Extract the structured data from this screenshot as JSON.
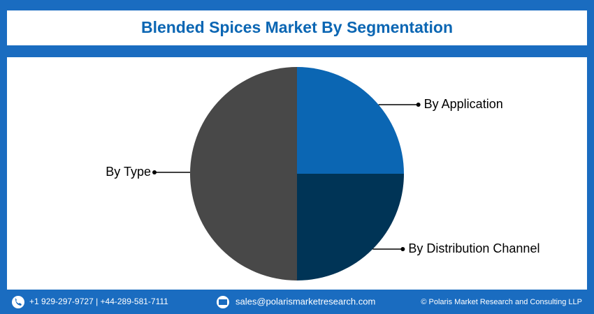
{
  "chart_data": {
    "type": "pie",
    "title": "Blended Spices Market By Segmentation",
    "categories": [
      "By Application",
      "By Distribution Channel",
      "By Type"
    ],
    "values": [
      25,
      25,
      50
    ],
    "colors": [
      "#0b66b3",
      "#003456",
      "#484848"
    ]
  },
  "footer": {
    "phone": "+1 929-297-9727 | +44-289-581-7111",
    "email": "sales@polarismarketresearch.com",
    "copyright": "© Polaris Market Research and Consulting LLP"
  }
}
